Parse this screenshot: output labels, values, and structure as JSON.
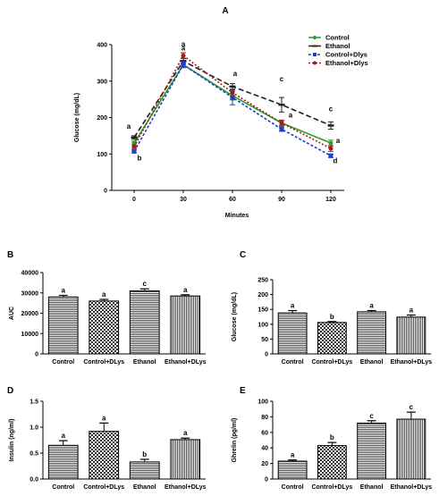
{
  "chart_data": [
    {
      "panel": "A",
      "type": "line",
      "xlabel": "Minutes",
      "ylabel": "Glucose (mg/dL)",
      "x": [
        0,
        30,
        60,
        90,
        120
      ],
      "ylim": [
        0,
        400
      ],
      "yticks": [
        0,
        100,
        200,
        300,
        400
      ],
      "legend_position": "top-right",
      "series": [
        {
          "name": "Control",
          "color": "#2ca02c",
          "dash": "",
          "marker": "circle",
          "values": [
            130,
            345,
            260,
            185,
            130
          ],
          "errors": [
            5,
            8,
            12,
            6,
            8
          ],
          "letters": [
            "",
            "",
            "",
            "",
            ""
          ]
        },
        {
          "name": "Ethanol",
          "color": "#222222",
          "dash": "6,3",
          "marker": "dash",
          "values": [
            145,
            355,
            285,
            235,
            178
          ],
          "errors": [
            5,
            8,
            8,
            20,
            10
          ],
          "letters": [
            "a",
            "a",
            "a",
            "c",
            "c"
          ]
        },
        {
          "name": "Control+Dlys",
          "color": "#1f3ecf",
          "dash": "3,2",
          "marker": "square",
          "values": [
            107,
            345,
            255,
            168,
            95
          ],
          "errors": [
            4,
            8,
            20,
            6,
            5
          ],
          "letters": [
            "b",
            "",
            "",
            "",
            "d"
          ]
        },
        {
          "name": "Ethanol+Dlys",
          "color": "#a01c1c",
          "dash": "2,2",
          "marker": "circle",
          "values": [
            120,
            370,
            268,
            185,
            115
          ],
          "errors": [
            5,
            8,
            10,
            8,
            8
          ],
          "letters": [
            "",
            "a",
            "",
            "a",
            "a"
          ]
        }
      ]
    },
    {
      "panel": "B",
      "type": "bar",
      "ylabel": "AUC",
      "categories": [
        "Control",
        "Control+DLys",
        "Ethanol",
        "Ethanol+DLys"
      ],
      "patterns": [
        "hlines",
        "checker",
        "hlines",
        "vlines"
      ],
      "values": [
        28000,
        26000,
        31000,
        28500
      ],
      "errors": [
        800,
        800,
        1000,
        600
      ],
      "letters": [
        "a",
        "a",
        "c",
        "a"
      ],
      "ylim": [
        0,
        40000
      ],
      "yticks": [
        0,
        10000,
        20000,
        30000,
        40000
      ]
    },
    {
      "panel": "C",
      "type": "bar",
      "ylabel": "Glucose (mg/dL)",
      "categories": [
        "Control",
        "Control+DLys",
        "Ethanol",
        "Ethanol+DLys"
      ],
      "patterns": [
        "hlines",
        "checker",
        "hlines",
        "vlines"
      ],
      "values": [
        138,
        106,
        142,
        124
      ],
      "errors": [
        8,
        3,
        4,
        7
      ],
      "letters": [
        "a",
        "b",
        "a",
        "a"
      ],
      "ylim": [
        0,
        250
      ],
      "yticks": [
        0,
        50,
        100,
        150,
        200,
        250
      ]
    },
    {
      "panel": "D",
      "type": "bar",
      "ylabel": "Insulin (ng/ml)",
      "categories": [
        "Control",
        "Control+DLys",
        "Ethanol",
        "Ethanol+DLys"
      ],
      "patterns": [
        "hlines",
        "checker",
        "hlines",
        "vlines"
      ],
      "values": [
        0.65,
        0.92,
        0.33,
        0.76
      ],
      "errors": [
        0.09,
        0.16,
        0.05,
        0.03
      ],
      "letters": [
        "a",
        "a",
        "b",
        "a"
      ],
      "ylim": [
        0,
        1.5
      ],
      "yticks": [
        0.0,
        0.5,
        1.0,
        1.5
      ],
      "ytick_labels": [
        "0.0",
        "0.5",
        "1.0",
        "1.5"
      ]
    },
    {
      "panel": "E",
      "type": "bar",
      "ylabel": "Ghrelin (pg/ml)",
      "categories": [
        "Control",
        "Control+DLys",
        "Ethanol",
        "Ethanol+DLys"
      ],
      "patterns": [
        "hlines",
        "checker",
        "hlines",
        "vlines"
      ],
      "values": [
        23,
        43,
        72,
        77
      ],
      "errors": [
        1.5,
        4,
        3,
        9
      ],
      "letters": [
        "a",
        "b",
        "c",
        "c"
      ],
      "ylim": [
        0,
        100
      ],
      "yticks": [
        0,
        20,
        40,
        60,
        80,
        100
      ]
    }
  ]
}
